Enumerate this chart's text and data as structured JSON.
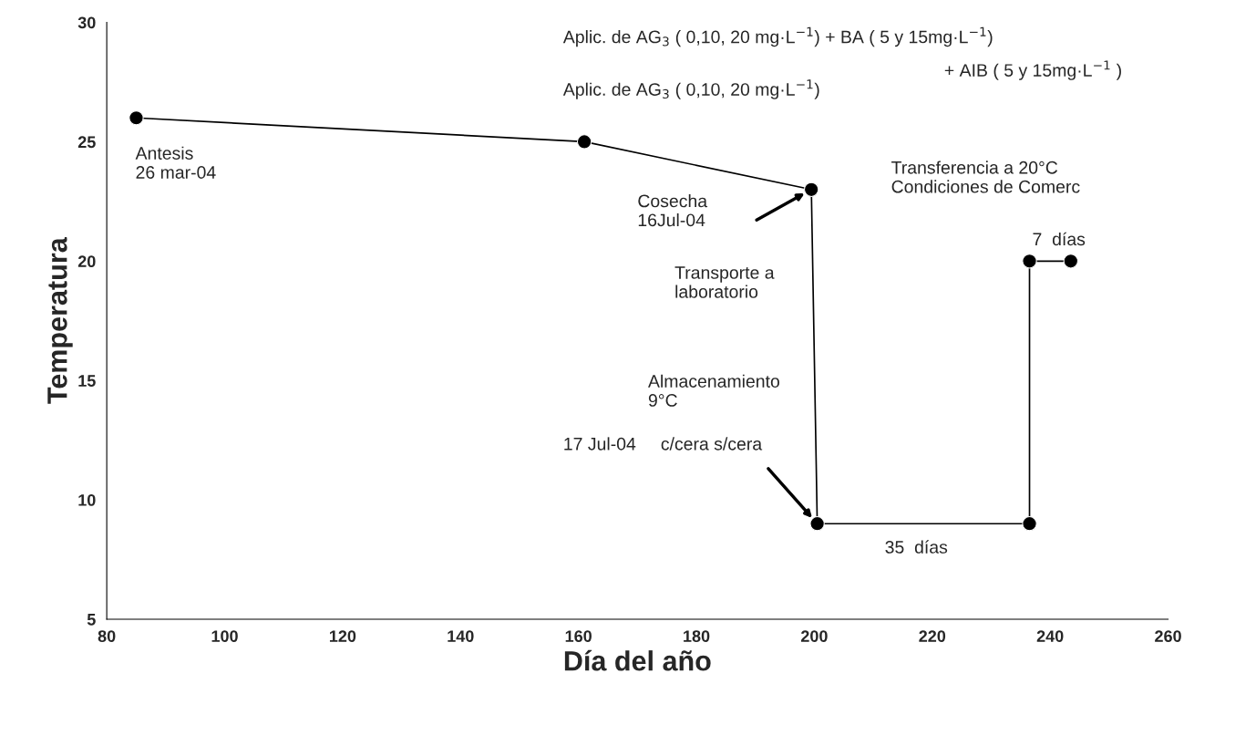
{
  "chart_data": {
    "type": "line",
    "xlabel": "Día del año",
    "ylabel": "Temperatura",
    "x": [
      85,
      161,
      199.5,
      200.5,
      236.5,
      236.5,
      243.5
    ],
    "series": [
      {
        "color": "#000000",
        "values": [
          26,
          25,
          23,
          9,
          9,
          20,
          20
        ]
      }
    ],
    "xlim": [
      80,
      260
    ],
    "xticks": [
      80,
      100,
      120,
      140,
      160,
      180,
      200,
      220,
      240,
      260
    ],
    "ylim": [
      5,
      30
    ],
    "yticks": [
      5,
      10,
      15,
      20,
      25,
      30
    ],
    "grid": false,
    "legend": false,
    "marker": "circle",
    "line_style": "solid",
    "annotations": [
      "Antesis\n26 mar-04",
      "Cosecha\n16Jul-04",
      "Transporte a\nlaboratorio",
      "Almacenamiento\n9°C",
      "17 Jul-04     c/cera s/cera",
      "Aplic. de AG$_{3}$ ( 0,10, 20 mg·L$^{−1}$) + BA ( 5 y 15mg·L$^{−1}$)",
      "+ AIB ( 5 y 15mg·L$^{−1}$ )",
      "Aplic. de AG$_{3}$ ( 0,10, 20 mg·L$^{−1}$)",
      "Transferencia a 20°C\nCondiciones de Comerc",
      "7  días",
      "35  días"
    ]
  }
}
